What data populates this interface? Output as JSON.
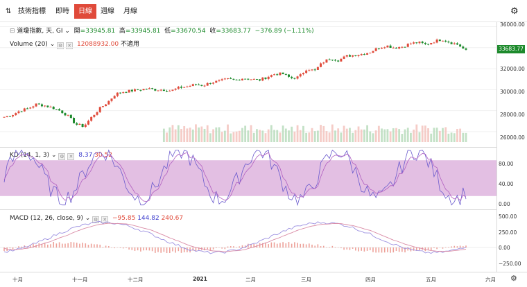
{
  "toolbar": {
    "indicator_label": "技術指標",
    "periods": [
      "即時",
      "日線",
      "週線",
      "月線"
    ],
    "active_period": "日線"
  },
  "main_legend": {
    "symbol": "道瓊指數, 天, GI",
    "open_label": "開",
    "open": "=33945.81",
    "high_label": "高",
    "high": "=33945.81",
    "low_label": "低",
    "low": "=33670.54",
    "close_label": "收",
    "close": "=33683.77",
    "change": "−376.89 (−1.11%)"
  },
  "volume_legend": {
    "label": "Volume (20)",
    "value": "12088932.00",
    "na": "不適用"
  },
  "kd_legend": {
    "label": "KD (14, 1, 3)",
    "k": "8.37",
    "d": "30.52"
  },
  "macd_legend": {
    "label": "MACD (12, 26, close, 9)",
    "hist": "−95.85",
    "macd": "144.82",
    "signal": "240.67"
  },
  "price_axis": [
    "36000.00",
    "34000.00",
    "32000.00",
    "30000.00",
    "28000.00",
    "26000.00"
  ],
  "price_tag": "33683.77",
  "kd_axis": [
    "80.00",
    "40.00",
    "0.00"
  ],
  "macd_axis": [
    "500.00",
    "250.00",
    "0.00",
    "−250.00"
  ],
  "x_axis": [
    "十月",
    "十一月",
    "十二月",
    "2021",
    "二月",
    "三月",
    "四月",
    "五月",
    "六月"
  ],
  "colors": {
    "up": "#e04a3a",
    "down": "#1d8a2c",
    "kd_band": "#d9a9da",
    "k_line": "#6a5acd",
    "d_line": "#b05fc0",
    "active": "#e04a3a"
  },
  "chart_data": {
    "type": "candlestick",
    "price_range": [
      25000,
      36300
    ],
    "close_trend": [
      27400,
      27600,
      28000,
      28200,
      28600,
      28500,
      28300,
      28000,
      27500,
      26700,
      26500,
      27400,
      28200,
      28800,
      29600,
      29800,
      29900,
      30000,
      30100,
      30000,
      30000,
      29900,
      30200,
      30300,
      30500,
      30400,
      30700,
      30800,
      31000,
      30900,
      31100,
      31000,
      30900,
      31200,
      31500,
      31500,
      31100,
      31200,
      32000,
      31800,
      32600,
      33000,
      32800,
      33200,
      33300,
      33400,
      33600,
      34000,
      34200,
      34000,
      34100,
      34400,
      34500,
      34300,
      34600,
      34800,
      34500,
      34300,
      33700
    ],
    "kd": {
      "range": [
        0,
        100
      ],
      "band": [
        20,
        80
      ],
      "k_last": 8.37,
      "d_last": 30.52
    },
    "macd": {
      "range": [
        -350,
        560
      ],
      "hist_last": -95.85,
      "macd_last": 144.82,
      "signal_last": 240.67
    }
  }
}
